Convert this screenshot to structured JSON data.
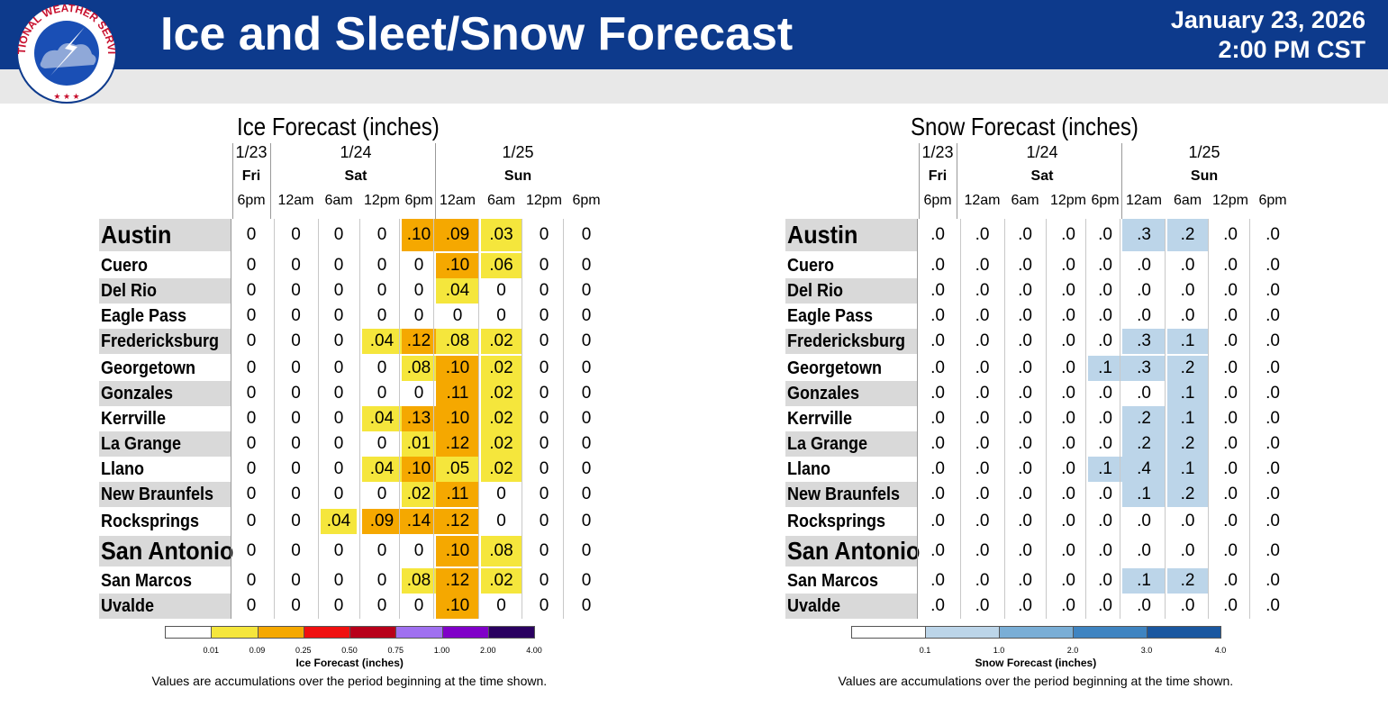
{
  "header": {
    "logo_text": "NATIONAL WEATHER SERVICE",
    "title": "Ice and Sleet/Snow Forecast",
    "date": "January 23, 2026",
    "time": "2:00 PM CST"
  },
  "columns": {
    "dates": [
      {
        "date": "1/23",
        "day": "Fri"
      },
      {
        "date": "1/24",
        "day": "Sat"
      },
      {
        "date": "1/25",
        "day": "Sun"
      }
    ],
    "times": [
      "6pm",
      "12am",
      "6am",
      "12pm",
      "6pm",
      "12am",
      "6am",
      "12pm",
      "6pm"
    ]
  },
  "cities": [
    "Austin",
    "Cuero",
    "Del Rio",
    "Eagle Pass",
    "Fredericksburg",
    "Georgetown",
    "Gonzales",
    "Kerrville",
    "La Grange",
    "Llano",
    "New Braunfels",
    "Rocksprings",
    "San Antonio",
    "San Marcos",
    "Uvalde"
  ],
  "ice": {
    "title": "Ice Forecast (inches)",
    "values": [
      [
        "0",
        "0",
        "0",
        "0",
        ".10",
        ".09",
        ".03",
        "0",
        "0"
      ],
      [
        "0",
        "0",
        "0",
        "0",
        "0",
        ".10",
        ".06",
        "0",
        "0"
      ],
      [
        "0",
        "0",
        "0",
        "0",
        "0",
        ".04",
        "0",
        "0",
        "0"
      ],
      [
        "0",
        "0",
        "0",
        "0",
        "0",
        "0",
        "0",
        "0",
        "0"
      ],
      [
        "0",
        "0",
        "0",
        ".04",
        ".12",
        ".08",
        ".02",
        "0",
        "0"
      ],
      [
        "0",
        "0",
        "0",
        "0",
        ".08",
        ".10",
        ".02",
        "0",
        "0"
      ],
      [
        "0",
        "0",
        "0",
        "0",
        "0",
        ".11",
        ".02",
        "0",
        "0"
      ],
      [
        "0",
        "0",
        "0",
        ".04",
        ".13",
        ".10",
        ".02",
        "0",
        "0"
      ],
      [
        "0",
        "0",
        "0",
        "0",
        ".01",
        ".12",
        ".02",
        "0",
        "0"
      ],
      [
        "0",
        "0",
        "0",
        ".04",
        ".10",
        ".05",
        ".02",
        "0",
        "0"
      ],
      [
        "0",
        "0",
        "0",
        "0",
        ".02",
        ".11",
        "0",
        "0",
        "0"
      ],
      [
        "0",
        "0",
        ".04",
        ".09",
        ".14",
        ".12",
        "0",
        "0",
        "0"
      ],
      [
        "0",
        "0",
        "0",
        "0",
        "0",
        ".10",
        ".08",
        "0",
        "0"
      ],
      [
        "0",
        "0",
        "0",
        "0",
        ".08",
        ".12",
        ".02",
        "0",
        "0"
      ],
      [
        "0",
        "0",
        "0",
        "0",
        "0",
        ".10",
        "0",
        "0",
        "0"
      ]
    ],
    "legend": {
      "ticks": [
        "0.01",
        "0.09",
        "0.25",
        "0.50",
        "0.75",
        "1.00",
        "2.00",
        "4.00"
      ],
      "colors": [
        "#ffffff",
        "#f5e63c",
        "#f5a800",
        "#f01010",
        "#b8001a",
        "#a070f0",
        "#8000c8",
        "#2a0060"
      ],
      "title": "Ice Forecast (inches)",
      "note": "Values are accumulations over the period beginning at the time shown."
    }
  },
  "snow": {
    "title": "Snow Forecast (inches)",
    "values": [
      [
        ".0",
        ".0",
        ".0",
        ".0",
        ".0",
        ".3",
        ".2",
        ".0",
        ".0"
      ],
      [
        ".0",
        ".0",
        ".0",
        ".0",
        ".0",
        ".0",
        ".0",
        ".0",
        ".0"
      ],
      [
        ".0",
        ".0",
        ".0",
        ".0",
        ".0",
        ".0",
        ".0",
        ".0",
        ".0"
      ],
      [
        ".0",
        ".0",
        ".0",
        ".0",
        ".0",
        ".0",
        ".0",
        ".0",
        ".0"
      ],
      [
        ".0",
        ".0",
        ".0",
        ".0",
        ".0",
        ".3",
        ".1",
        ".0",
        ".0"
      ],
      [
        ".0",
        ".0",
        ".0",
        ".0",
        ".1",
        ".3",
        ".2",
        ".0",
        ".0"
      ],
      [
        ".0",
        ".0",
        ".0",
        ".0",
        ".0",
        ".0",
        ".1",
        ".0",
        ".0"
      ],
      [
        ".0",
        ".0",
        ".0",
        ".0",
        ".0",
        ".2",
        ".1",
        ".0",
        ".0"
      ],
      [
        ".0",
        ".0",
        ".0",
        ".0",
        ".0",
        ".2",
        ".2",
        ".0",
        ".0"
      ],
      [
        ".0",
        ".0",
        ".0",
        ".0",
        ".1",
        ".4",
        ".1",
        ".0",
        ".0"
      ],
      [
        ".0",
        ".0",
        ".0",
        ".0",
        ".0",
        ".1",
        ".2",
        ".0",
        ".0"
      ],
      [
        ".0",
        ".0",
        ".0",
        ".0",
        ".0",
        ".0",
        ".0",
        ".0",
        ".0"
      ],
      [
        ".0",
        ".0",
        ".0",
        ".0",
        ".0",
        ".0",
        ".0",
        ".0",
        ".0"
      ],
      [
        ".0",
        ".0",
        ".0",
        ".0",
        ".0",
        ".1",
        ".2",
        ".0",
        ".0"
      ],
      [
        ".0",
        ".0",
        ".0",
        ".0",
        ".0",
        ".0",
        ".0",
        ".0",
        ".0"
      ]
    ],
    "legend": {
      "ticks": [
        "0.1",
        "1.0",
        "2.0",
        "3.0",
        "4.0"
      ],
      "colors": [
        "#ffffff",
        "#bcd5e9",
        "#7aaed6",
        "#3f84c1",
        "#1a57a0"
      ],
      "title": "Snow Forecast (inches)",
      "note": "Values are accumulations over the period beginning at the time shown."
    }
  },
  "colors": {
    "header_bg": "#0d3a8c",
    "ice_yellow": "#f5e63c",
    "ice_orange": "#f5a800",
    "snow_blue": "#bcd5e9",
    "city_shade": "#d9d9d9"
  }
}
